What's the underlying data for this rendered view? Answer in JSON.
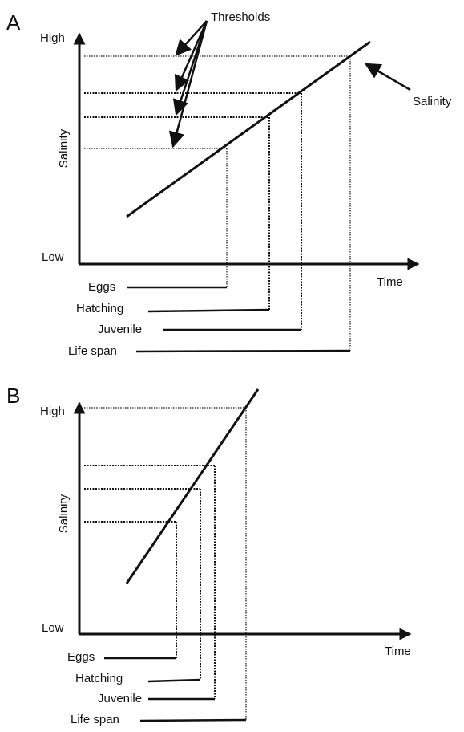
{
  "panels": [
    {
      "label": "A",
      "annotation": "Thresholds",
      "line_label": "Salinity",
      "y_high": "High",
      "y_low": "Low",
      "y_title": "Salinity",
      "x_title": "Time",
      "stages": [
        "Eggs",
        "Hatching",
        "Juvenile",
        "Life span"
      ]
    },
    {
      "label": "B",
      "y_high": "High",
      "y_low": "Low",
      "y_title": "Salinity",
      "x_title": "Time",
      "stages": [
        "Eggs",
        "Hatching",
        "Juvenile",
        "Life span"
      ]
    }
  ]
}
